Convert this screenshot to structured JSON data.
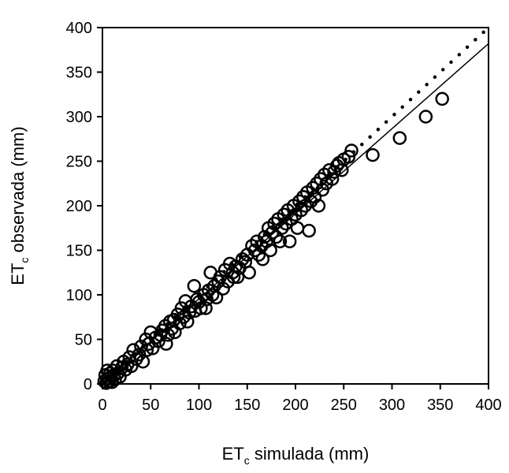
{
  "chart_data": {
    "type": "scatter",
    "title": "",
    "xlabel": {
      "main": "ET",
      "sub": "c",
      "rest": " simulada (mm)"
    },
    "ylabel": {
      "main": "ET",
      "sub": "c",
      "rest": " observada (mm)"
    },
    "xlim": [
      0,
      400
    ],
    "ylim": [
      0,
      400
    ],
    "xticks": [
      "0",
      "50",
      "100",
      "150",
      "200",
      "250",
      "300",
      "350",
      "400"
    ],
    "yticks": [
      "0",
      "50",
      "100",
      "150",
      "200",
      "250",
      "300",
      "350",
      "400"
    ],
    "grid": false,
    "legend": "none",
    "marker": "open-circle",
    "colors": {
      "marker": "#000000",
      "line": "#000000"
    },
    "reference_lines": [
      {
        "name": "1:1 line",
        "style": "dotted",
        "points": [
          [
            0,
            0
          ],
          [
            400,
            400
          ]
        ]
      },
      {
        "name": "regression line",
        "style": "solid",
        "points": [
          [
            0,
            0
          ],
          [
            400,
            382
          ]
        ]
      }
    ],
    "points": [
      [
        2,
        3
      ],
      [
        3,
        10
      ],
      [
        4,
        1
      ],
      [
        5,
        15
      ],
      [
        6,
        6
      ],
      [
        7,
        3
      ],
      [
        8,
        12
      ],
      [
        9,
        8
      ],
      [
        10,
        2
      ],
      [
        11,
        15
      ],
      [
        12,
        10
      ],
      [
        13,
        5
      ],
      [
        15,
        20
      ],
      [
        16,
        12
      ],
      [
        18,
        8
      ],
      [
        20,
        18
      ],
      [
        22,
        25
      ],
      [
        24,
        16
      ],
      [
        26,
        22
      ],
      [
        28,
        30
      ],
      [
        30,
        20
      ],
      [
        32,
        38
      ],
      [
        35,
        28
      ],
      [
        38,
        33
      ],
      [
        40,
        42
      ],
      [
        42,
        25
      ],
      [
        45,
        50
      ],
      [
        46,
        38
      ],
      [
        48,
        45
      ],
      [
        50,
        58
      ],
      [
        52,
        40
      ],
      [
        55,
        52
      ],
      [
        58,
        48
      ],
      [
        60,
        55
      ],
      [
        62,
        60
      ],
      [
        65,
        65
      ],
      [
        66,
        45
      ],
      [
        68,
        55
      ],
      [
        70,
        70
      ],
      [
        72,
        62
      ],
      [
        74,
        72
      ],
      [
        75,
        58
      ],
      [
        78,
        78
      ],
      [
        80,
        68
      ],
      [
        82,
        85
      ],
      [
        84,
        75
      ],
      [
        86,
        93
      ],
      [
        88,
        70
      ],
      [
        90,
        80
      ],
      [
        92,
        87
      ],
      [
        95,
        110
      ],
      [
        96,
        82
      ],
      [
        98,
        95
      ],
      [
        100,
        92
      ],
      [
        102,
        85
      ],
      [
        105,
        100
      ],
      [
        107,
        85
      ],
      [
        108,
        95
      ],
      [
        110,
        105
      ],
      [
        112,
        125
      ],
      [
        114,
        100
      ],
      [
        116,
        110
      ],
      [
        118,
        97
      ],
      [
        120,
        115
      ],
      [
        122,
        120
      ],
      [
        125,
        107
      ],
      [
        127,
        128
      ],
      [
        130,
        115
      ],
      [
        132,
        135
      ],
      [
        135,
        125
      ],
      [
        136,
        120
      ],
      [
        138,
        132
      ],
      [
        140,
        120
      ],
      [
        142,
        130
      ],
      [
        145,
        140
      ],
      [
        148,
        137
      ],
      [
        150,
        145
      ],
      [
        152,
        125
      ],
      [
        155,
        155
      ],
      [
        158,
        150
      ],
      [
        160,
        160
      ],
      [
        162,
        145
      ],
      [
        165,
        155
      ],
      [
        166,
        140
      ],
      [
        168,
        165
      ],
      [
        170,
        160
      ],
      [
        172,
        175
      ],
      [
        174,
        150
      ],
      [
        176,
        170
      ],
      [
        178,
        180
      ],
      [
        180,
        165
      ],
      [
        182,
        185
      ],
      [
        184,
        160
      ],
      [
        186,
        175
      ],
      [
        188,
        190
      ],
      [
        190,
        180
      ],
      [
        192,
        195
      ],
      [
        194,
        160
      ],
      [
        196,
        185
      ],
      [
        198,
        200
      ],
      [
        200,
        190
      ],
      [
        202,
        175
      ],
      [
        204,
        205
      ],
      [
        206,
        195
      ],
      [
        208,
        210
      ],
      [
        210,
        200
      ],
      [
        212,
        215
      ],
      [
        214,
        172
      ],
      [
        216,
        205
      ],
      [
        218,
        220
      ],
      [
        220,
        210
      ],
      [
        222,
        225
      ],
      [
        224,
        200
      ],
      [
        226,
        230
      ],
      [
        228,
        218
      ],
      [
        230,
        235
      ],
      [
        232,
        225
      ],
      [
        235,
        240
      ],
      [
        238,
        230
      ],
      [
        240,
        238
      ],
      [
        243,
        245
      ],
      [
        245,
        248
      ],
      [
        248,
        240
      ],
      [
        250,
        252
      ],
      [
        255,
        255
      ],
      [
        258,
        262
      ],
      [
        280,
        257
      ],
      [
        308,
        276
      ],
      [
        335,
        300
      ],
      [
        352,
        320
      ]
    ]
  }
}
